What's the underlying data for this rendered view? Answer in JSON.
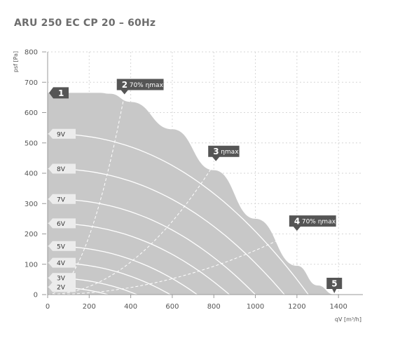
{
  "chart_data": {
    "type": "line",
    "title": "ARU 250 EC CP 20 – 60Hz",
    "xlabel": "qV [m³/h]",
    "ylabel": "psf [Pa]",
    "xlim": [
      0,
      1450
    ],
    "ylim": [
      0,
      800
    ],
    "xticks": [
      "0",
      "200",
      "400",
      "600",
      "800",
      "1000",
      "1200",
      "1400"
    ],
    "yticks": [
      "0",
      "100",
      "200",
      "300",
      "400",
      "500",
      "600",
      "700",
      "800"
    ],
    "grid": true,
    "envelope": {
      "x": [
        0,
        250,
        300,
        400,
        600,
        800,
        1000,
        1200,
        1300,
        1380
      ],
      "y": [
        665,
        665,
        662,
        635,
        545,
        410,
        250,
        95,
        30,
        0
      ]
    },
    "voltage_curves": [
      {
        "label": "9V",
        "p0": 530,
        "q0": 1255
      },
      {
        "label": "8V",
        "p0": 415,
        "q0": 1140
      },
      {
        "label": "7V",
        "p0": 315,
        "q0": 1000
      },
      {
        "label": "6V",
        "p0": 235,
        "q0": 875
      },
      {
        "label": "5V",
        "p0": 160,
        "q0": 720
      },
      {
        "label": "4V",
        "p0": 105,
        "q0": 590
      },
      {
        "label": "3V",
        "p0": 55,
        "q0": 430
      },
      {
        "label": "2V",
        "p0": 25,
        "q0": 290
      }
    ],
    "system_lines": [
      {
        "x": 370,
        "y": 660
      },
      {
        "x": 810,
        "y": 440
      },
      {
        "x": 1200,
        "y": 210
      }
    ],
    "markers": [
      {
        "num": "1",
        "text": "",
        "x": 0,
        "y": 665
      },
      {
        "num": "2",
        "text": "70% ηmax",
        "x": 370,
        "y": 660
      },
      {
        "num": "3",
        "text": "ηmax",
        "x": 810,
        "y": 440
      },
      {
        "num": "4",
        "text": "70% ηmax",
        "x": 1200,
        "y": 210
      },
      {
        "num": "5",
        "text": "",
        "x": 1380,
        "y": 0
      }
    ],
    "colors": {
      "envelope_fill": "#c8c8c8",
      "curve": "#ffffff",
      "marker": "#555555",
      "voltage_label_bg": "#ececec",
      "grid": "#d6d6d6",
      "axis": "#999999"
    }
  }
}
